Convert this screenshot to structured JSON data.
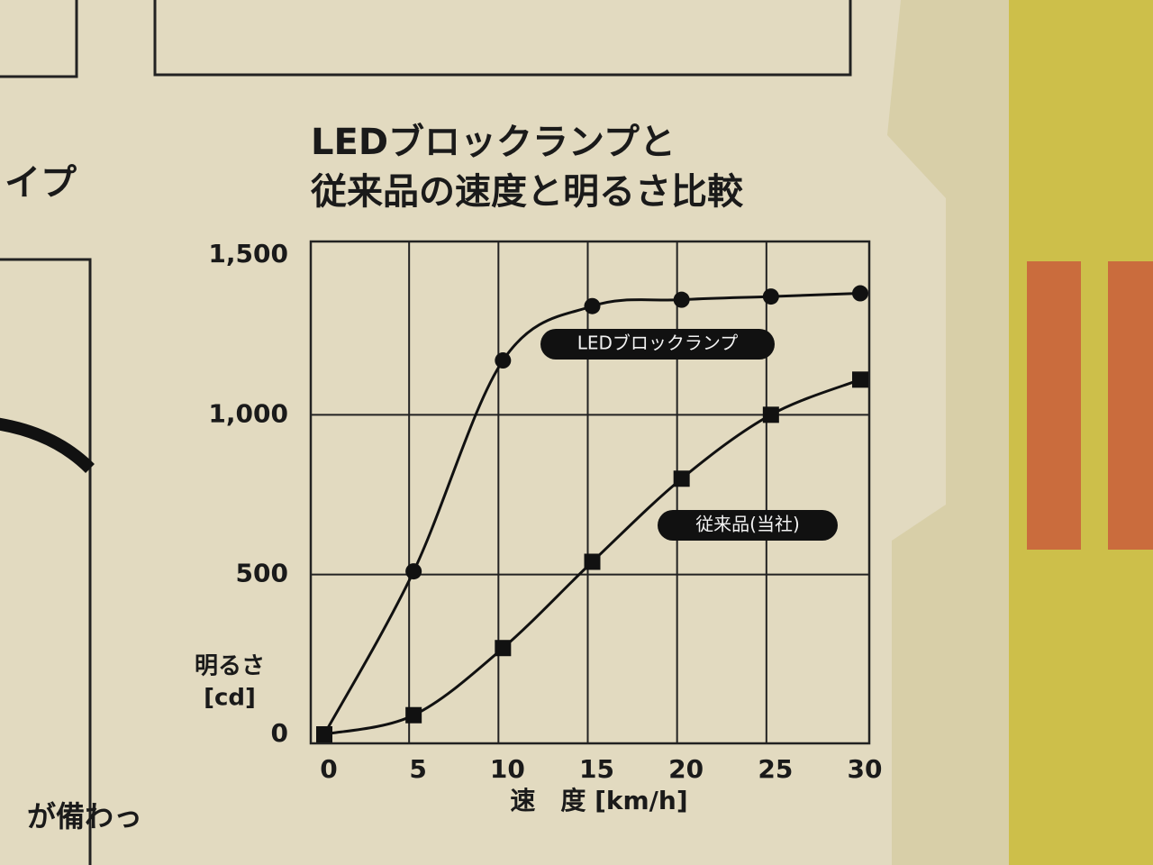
{
  "chart_data": {
    "type": "line",
    "title_lines": [
      "LEDブロックランプと",
      "従来品の速度と明るさ比較"
    ],
    "y_label_lines": [
      "明るさ",
      "[cd]"
    ],
    "x_label": "速　度 [km/h]",
    "x": [
      0,
      5,
      10,
      15,
      20,
      25,
      30
    ],
    "series": [
      {
        "name": "LEDブロックランプ",
        "color": "#111111",
        "marker": "circle",
        "values": [
          0,
          510,
          1170,
          1340,
          1360,
          1370,
          1380
        ]
      },
      {
        "name": "従来品(当社)",
        "color": "#111111",
        "marker": "square",
        "values": [
          0,
          60,
          270,
          540,
          800,
          1000,
          1110
        ]
      }
    ],
    "xlim": [
      0,
      30
    ],
    "xticks": [
      0,
      5,
      10,
      15,
      20,
      25,
      30
    ],
    "ylim": [
      0,
      1500
    ],
    "yticks": [
      0,
      500,
      {
        "value": 1000,
        "label": "1,000"
      },
      {
        "value": 1500,
        "label": "1,500"
      }
    ],
    "grid": true
  },
  "side_texts": [
    "イプ",
    "が備わっ"
  ]
}
